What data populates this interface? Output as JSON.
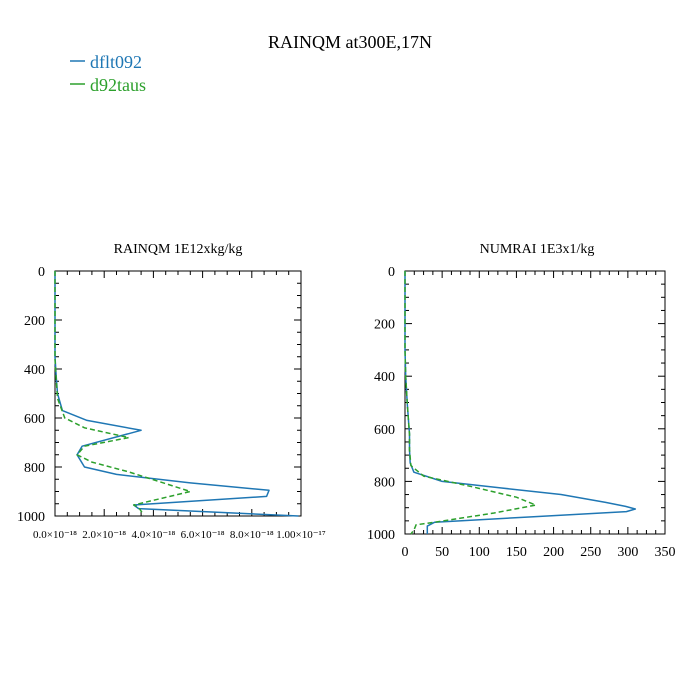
{
  "figure": {
    "title": "RAINQM at300E,17N",
    "legend": [
      {
        "name": "dflt092",
        "color": "#1f77b4",
        "dash": "solid"
      },
      {
        "name": "d92taus",
        "color": "#2ca02c",
        "dash": "dashed"
      }
    ]
  },
  "chart_data": [
    {
      "type": "line",
      "orientation": "profile (x = value, y = level, y axis inverted)",
      "title": "RAINQM  1E12xkg/kg",
      "xlim": [
        0,
        1e-17
      ],
      "ylim": [
        1000,
        0
      ],
      "x_ticks": [
        0,
        2e-18,
        4e-18,
        6e-18,
        8e-18,
        1e-17
      ],
      "x_tick_labels": [
        "0.0×10⁻¹⁸",
        "2.0×10⁻¹⁸",
        "4.0×10⁻¹⁸",
        "6.0×10⁻¹⁸",
        "8.0×10⁻¹⁸",
        "1.00×10⁻¹⁷"
      ],
      "y_ticks": [
        0,
        200,
        400,
        600,
        800,
        1000
      ],
      "grid": false,
      "series": [
        {
          "name": "dflt092",
          "x": [
            0,
            0,
            0,
            5e-20,
            1e-19,
            3e-19,
            1.3e-18,
            3.5e-18,
            1.1e-18,
            9e-19,
            1.2e-18,
            2.5e-18,
            5.5e-18,
            8.7e-18,
            8.6e-18,
            3.2e-18,
            3.4e-18,
            9.9e-18
          ],
          "y": [
            0,
            200,
            350,
            430,
            500,
            570,
            610,
            650,
            715,
            750,
            800,
            830,
            865,
            895,
            920,
            955,
            970,
            1000
          ]
        },
        {
          "name": "d92taus",
          "x": [
            0,
            0,
            0,
            5e-20,
            1e-19,
            4e-19,
            1.2e-18,
            3e-18,
            1.2e-18,
            9e-19,
            1.5e-18,
            3e-18,
            5.5e-18,
            3.2e-18,
            3.4e-18,
            3.6e-18
          ],
          "y": [
            0,
            200,
            360,
            440,
            520,
            600,
            640,
            680,
            715,
            750,
            780,
            820,
            900,
            955,
            965,
            995
          ]
        }
      ]
    },
    {
      "type": "line",
      "orientation": "profile (x = value, y = level, y axis inverted)",
      "title": "NUMRAI  1E3x1/kg",
      "xlim": [
        0,
        350
      ],
      "ylim": [
        1000,
        0
      ],
      "x_ticks": [
        0,
        50,
        100,
        150,
        200,
        250,
        300,
        350
      ],
      "y_ticks": [
        0,
        200,
        400,
        600,
        800,
        1000
      ],
      "grid": false,
      "series": [
        {
          "name": "dflt092",
          "x": [
            0,
            0,
            1,
            3,
            5,
            6,
            6,
            7,
            12,
            50,
            130,
            210,
            270,
            297,
            310,
            298,
            170,
            40,
            30,
            30
          ],
          "y": [
            0,
            300,
            400,
            500,
            580,
            620,
            680,
            730,
            765,
            800,
            825,
            850,
            880,
            895,
            905,
            915,
            935,
            955,
            970,
            1000
          ]
        },
        {
          "name": "d92taus",
          "x": [
            0,
            0,
            1,
            3,
            5,
            6,
            6,
            8,
            25,
            90,
            150,
            176,
            120,
            40,
            15,
            12,
            8
          ],
          "y": [
            0,
            300,
            400,
            500,
            580,
            620,
            680,
            740,
            780,
            820,
            860,
            890,
            920,
            955,
            965,
            985,
            1000
          ]
        }
      ]
    }
  ]
}
